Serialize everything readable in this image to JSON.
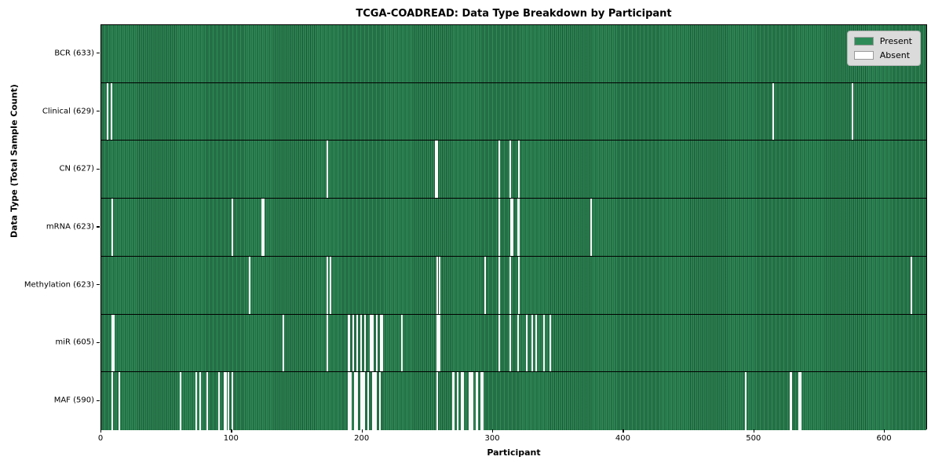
{
  "title": "TCGA-COADREAD: Data Type Breakdown by Participant",
  "xlabel": "Participant",
  "ylabel": "Data Type (Total Sample Count)",
  "legend": {
    "present_label": "Present",
    "absent_label": "Absent"
  },
  "colors": {
    "present": "#2e8b57",
    "absent": "#fbfbfb",
    "cell_edge": "rgba(0,0,0,0.40)",
    "legend_bg": "#dbdbdb",
    "axis": "#000000"
  },
  "chart_data": {
    "type": "heatmap",
    "x_axis": {
      "label": "Participant",
      "ticks": [
        0,
        100,
        200,
        300,
        400,
        500,
        600
      ],
      "range": [
        0,
        633
      ]
    },
    "n_participants": 633,
    "value_encoding": {
      "present": "green cell",
      "absent": "white cell"
    },
    "rows": [
      {
        "label": "BCR (633)",
        "name": "BCR",
        "total": 633,
        "absent_participants": []
      },
      {
        "label": "Clinical (629)",
        "name": "Clinical",
        "total": 629,
        "absent_participants": [
          4,
          7,
          515,
          576
        ]
      },
      {
        "label": "CN (627)",
        "name": "CN",
        "total": 627,
        "absent_participants": [
          173,
          256,
          257,
          305,
          313,
          320
        ]
      },
      {
        "label": "mRNA (623)",
        "name": "mRNA",
        "total": 623,
        "absent_participants": [
          8,
          100,
          123,
          124,
          305,
          314,
          315,
          319,
          320,
          375
        ]
      },
      {
        "label": "Methylation (623)",
        "name": "Methylation",
        "total": 623,
        "absent_participants": [
          113,
          173,
          175,
          257,
          259,
          294,
          305,
          313,
          320,
          621
        ]
      },
      {
        "label": "miR (605)",
        "name": "miR",
        "total": 605,
        "absent_participants": [
          8,
          9,
          139,
          173,
          189,
          190,
          193,
          196,
          199,
          202,
          206,
          207,
          208,
          211,
          214,
          215,
          230,
          257,
          258,
          259,
          305,
          313,
          319,
          326,
          330,
          333,
          339,
          344
        ]
      },
      {
        "label": "MAF (590)",
        "name": "MAF",
        "total": 590,
        "absent_participants": [
          8,
          13,
          60,
          72,
          75,
          81,
          90,
          94,
          95,
          97,
          100,
          189,
          190,
          191,
          194,
          195,
          196,
          199,
          200,
          201,
          204,
          208,
          209,
          210,
          213,
          257,
          269,
          270,
          273,
          276,
          277,
          282,
          283,
          284,
          287,
          288,
          291,
          292,
          494,
          528,
          529,
          535,
          536
        ]
      }
    ]
  }
}
